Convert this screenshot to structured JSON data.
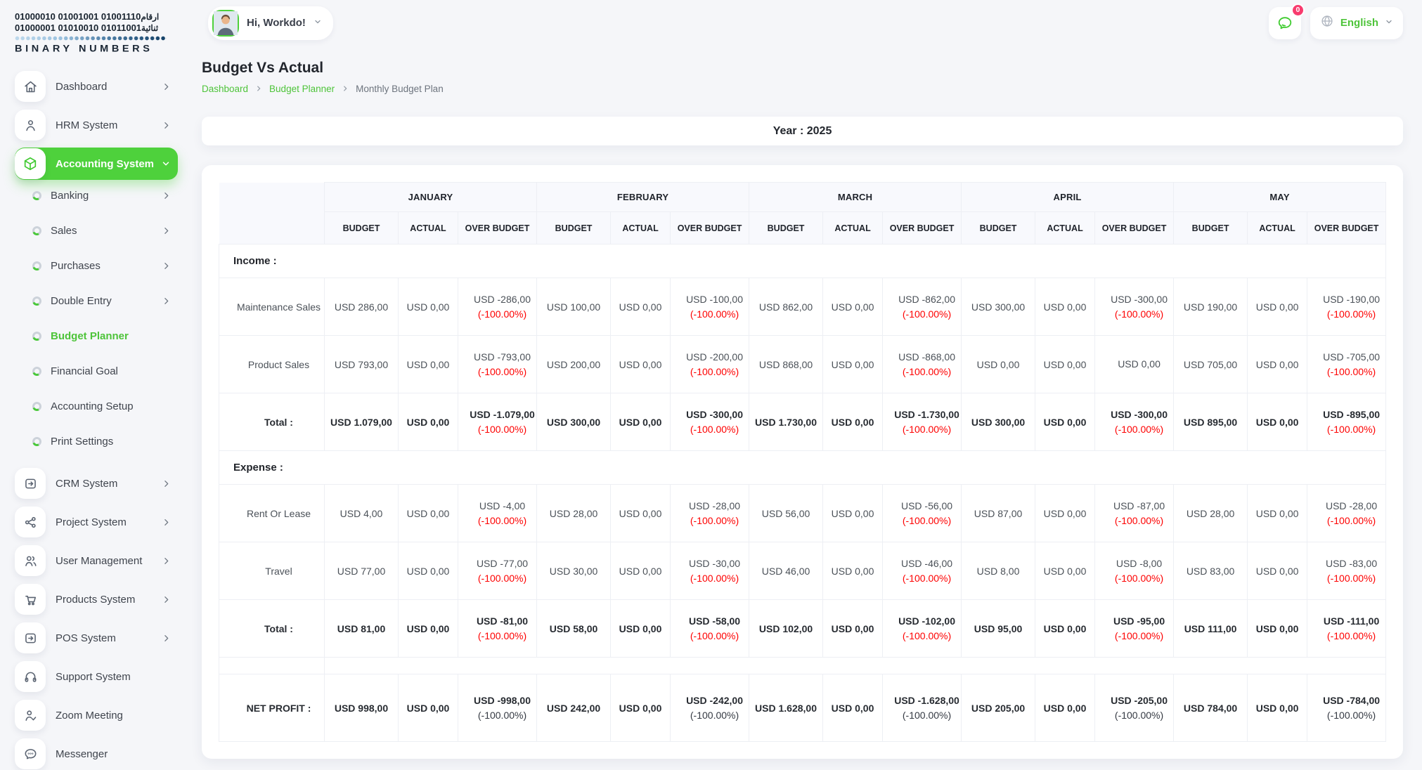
{
  "brand": {
    "binary_line1": "01000010 01001001 01001110",
    "binary_line1_ar": "ارقام",
    "binary_line2": "01000001 01010010 01011001",
    "binary_line2_ar": "ثنائية",
    "name": "BINARY NUMBERS"
  },
  "header": {
    "greeting": "Hi, Workdo!",
    "messages_badge": "0",
    "language": "English"
  },
  "sidebar": {
    "items": [
      {
        "label": "Dashboard",
        "icon": "home-icon",
        "chevron": "right"
      },
      {
        "label": "HRM System",
        "icon": "person-icon",
        "chevron": "right"
      },
      {
        "label": "Accounting System",
        "icon": "cube-icon",
        "chevron": "down",
        "active": true
      },
      {
        "label": "Banking",
        "sub": true,
        "chevron": "right"
      },
      {
        "label": "Sales",
        "sub": true,
        "chevron": "right"
      },
      {
        "label": "Purchases",
        "sub": true,
        "chevron": "right"
      },
      {
        "label": "Double Entry",
        "sub": true,
        "chevron": "right"
      },
      {
        "label": "Budget Planner",
        "sub": true,
        "active": true
      },
      {
        "label": "Financial Goal",
        "sub": true
      },
      {
        "label": "Accounting Setup",
        "sub": true
      },
      {
        "label": "Print Settings",
        "sub": true
      },
      {
        "label": "CRM System",
        "icon": "crm-icon",
        "chevron": "right"
      },
      {
        "label": "Project System",
        "icon": "share-icon",
        "chevron": "right"
      },
      {
        "label": "User Management",
        "icon": "users-icon",
        "chevron": "right"
      },
      {
        "label": "Products System",
        "icon": "cart-icon",
        "chevron": "right"
      },
      {
        "label": "POS System",
        "icon": "pos-icon",
        "chevron": "right"
      },
      {
        "label": "Support System",
        "icon": "headset-icon"
      },
      {
        "label": "Zoom Meeting",
        "icon": "person-check-icon"
      },
      {
        "label": "Messenger",
        "icon": "chat-icon"
      }
    ]
  },
  "page": {
    "title": "Budget Vs Actual",
    "breadcrumb": [
      "Dashboard",
      "Budget Planner",
      "Monthly Budget Plan"
    ],
    "year_label": "Year : 2025"
  },
  "table": {
    "months": [
      "JANUARY",
      "FEBRUARY",
      "MARCH",
      "APRIL",
      "MAY"
    ],
    "sub_headers": [
      "BUDGET",
      "ACTUAL",
      "OVER BUDGET"
    ],
    "rows": [
      {
        "type": "section",
        "label": "Income :"
      },
      {
        "type": "data",
        "label": "Maintenance Sales",
        "months": [
          {
            "b": "USD 286,00",
            "a": "USD 0,00",
            "o": "USD -286,00",
            "p": "(-100.00%)"
          },
          {
            "b": "USD 100,00",
            "a": "USD 0,00",
            "o": "USD -100,00",
            "p": "(-100.00%)"
          },
          {
            "b": "USD 862,00",
            "a": "USD 0,00",
            "o": "USD -862,00",
            "p": "(-100.00%)"
          },
          {
            "b": "USD 300,00",
            "a": "USD 0,00",
            "o": "USD -300,00",
            "p": "(-100.00%)"
          },
          {
            "b": "USD 190,00",
            "a": "USD 0,00",
            "o": "USD -190,00",
            "p": "(-100.00%)"
          }
        ]
      },
      {
        "type": "data",
        "label": "Product Sales",
        "months": [
          {
            "b": "USD 793,00",
            "a": "USD 0,00",
            "o": "USD -793,00",
            "p": "(-100.00%)"
          },
          {
            "b": "USD 200,00",
            "a": "USD 0,00",
            "o": "USD -200,00",
            "p": "(-100.00%)"
          },
          {
            "b": "USD 868,00",
            "a": "USD 0,00",
            "o": "USD -868,00",
            "p": "(-100.00%)"
          },
          {
            "b": "USD 0,00",
            "a": "USD 0,00",
            "o": "USD 0,00",
            "p": ""
          },
          {
            "b": "USD 705,00",
            "a": "USD 0,00",
            "o": "USD -705,00",
            "p": "(-100.00%)"
          }
        ]
      },
      {
        "type": "total",
        "label": "Total :",
        "months": [
          {
            "b": "USD 1.079,00",
            "a": "USD 0,00",
            "o": "USD -1.079,00",
            "p": "(-100.00%)"
          },
          {
            "b": "USD 300,00",
            "a": "USD 0,00",
            "o": "USD -300,00",
            "p": "(-100.00%)"
          },
          {
            "b": "USD 1.730,00",
            "a": "USD 0,00",
            "o": "USD -1.730,00",
            "p": "(-100.00%)"
          },
          {
            "b": "USD 300,00",
            "a": "USD 0,00",
            "o": "USD -300,00",
            "p": "(-100.00%)"
          },
          {
            "b": "USD 895,00",
            "a": "USD 0,00",
            "o": "USD -895,00",
            "p": "(-100.00%)"
          }
        ]
      },
      {
        "type": "section",
        "label": "Expense :"
      },
      {
        "type": "data",
        "label": "Rent Or Lease",
        "months": [
          {
            "b": "USD 4,00",
            "a": "USD 0,00",
            "o": "USD -4,00",
            "p": "(-100.00%)"
          },
          {
            "b": "USD 28,00",
            "a": "USD 0,00",
            "o": "USD -28,00",
            "p": "(-100.00%)"
          },
          {
            "b": "USD 56,00",
            "a": "USD 0,00",
            "o": "USD -56,00",
            "p": "(-100.00%)"
          },
          {
            "b": "USD 87,00",
            "a": "USD 0,00",
            "o": "USD -87,00",
            "p": "(-100.00%)"
          },
          {
            "b": "USD 28,00",
            "a": "USD 0,00",
            "o": "USD -28,00",
            "p": "(-100.00%)"
          }
        ]
      },
      {
        "type": "data",
        "label": "Travel",
        "months": [
          {
            "b": "USD 77,00",
            "a": "USD 0,00",
            "o": "USD -77,00",
            "p": "(-100.00%)"
          },
          {
            "b": "USD 30,00",
            "a": "USD 0,00",
            "o": "USD -30,00",
            "p": "(-100.00%)"
          },
          {
            "b": "USD 46,00",
            "a": "USD 0,00",
            "o": "USD -46,00",
            "p": "(-100.00%)"
          },
          {
            "b": "USD 8,00",
            "a": "USD 0,00",
            "o": "USD -8,00",
            "p": "(-100.00%)"
          },
          {
            "b": "USD 83,00",
            "a": "USD 0,00",
            "o": "USD -83,00",
            "p": "(-100.00%)"
          }
        ]
      },
      {
        "type": "total",
        "label": "Total :",
        "months": [
          {
            "b": "USD 81,00",
            "a": "USD 0,00",
            "o": "USD -81,00",
            "p": "(-100.00%)"
          },
          {
            "b": "USD 58,00",
            "a": "USD 0,00",
            "o": "USD -58,00",
            "p": "(-100.00%)"
          },
          {
            "b": "USD 102,00",
            "a": "USD 0,00",
            "o": "USD -102,00",
            "p": "(-100.00%)"
          },
          {
            "b": "USD 95,00",
            "a": "USD 0,00",
            "o": "USD -95,00",
            "p": "(-100.00%)"
          },
          {
            "b": "USD 111,00",
            "a": "USD 0,00",
            "o": "USD -111,00",
            "p": "(-100.00%)"
          }
        ]
      },
      {
        "type": "spacer"
      },
      {
        "type": "net",
        "label": "NET PROFIT :",
        "months": [
          {
            "b": "USD 998,00",
            "a": "USD 0,00",
            "o": "USD -998,00",
            "p": "(-100.00%)"
          },
          {
            "b": "USD 242,00",
            "a": "USD 0,00",
            "o": "USD -242,00",
            "p": "(-100.00%)"
          },
          {
            "b": "USD 1.628,00",
            "a": "USD 0,00",
            "o": "USD -1.628,00",
            "p": "(-100.00%)"
          },
          {
            "b": "USD 205,00",
            "a": "USD 0,00",
            "o": "USD -205,00",
            "p": "(-100.00%)"
          },
          {
            "b": "USD 784,00",
            "a": "USD 0,00",
            "o": "USD -784,00",
            "p": "(-100.00%)"
          }
        ]
      }
    ]
  },
  "colors": {
    "accent_green": "#4ed13c",
    "badge_pink": "#f83b6e",
    "negative_red": "#fe0000",
    "page_bg": "#f5f6f9"
  }
}
